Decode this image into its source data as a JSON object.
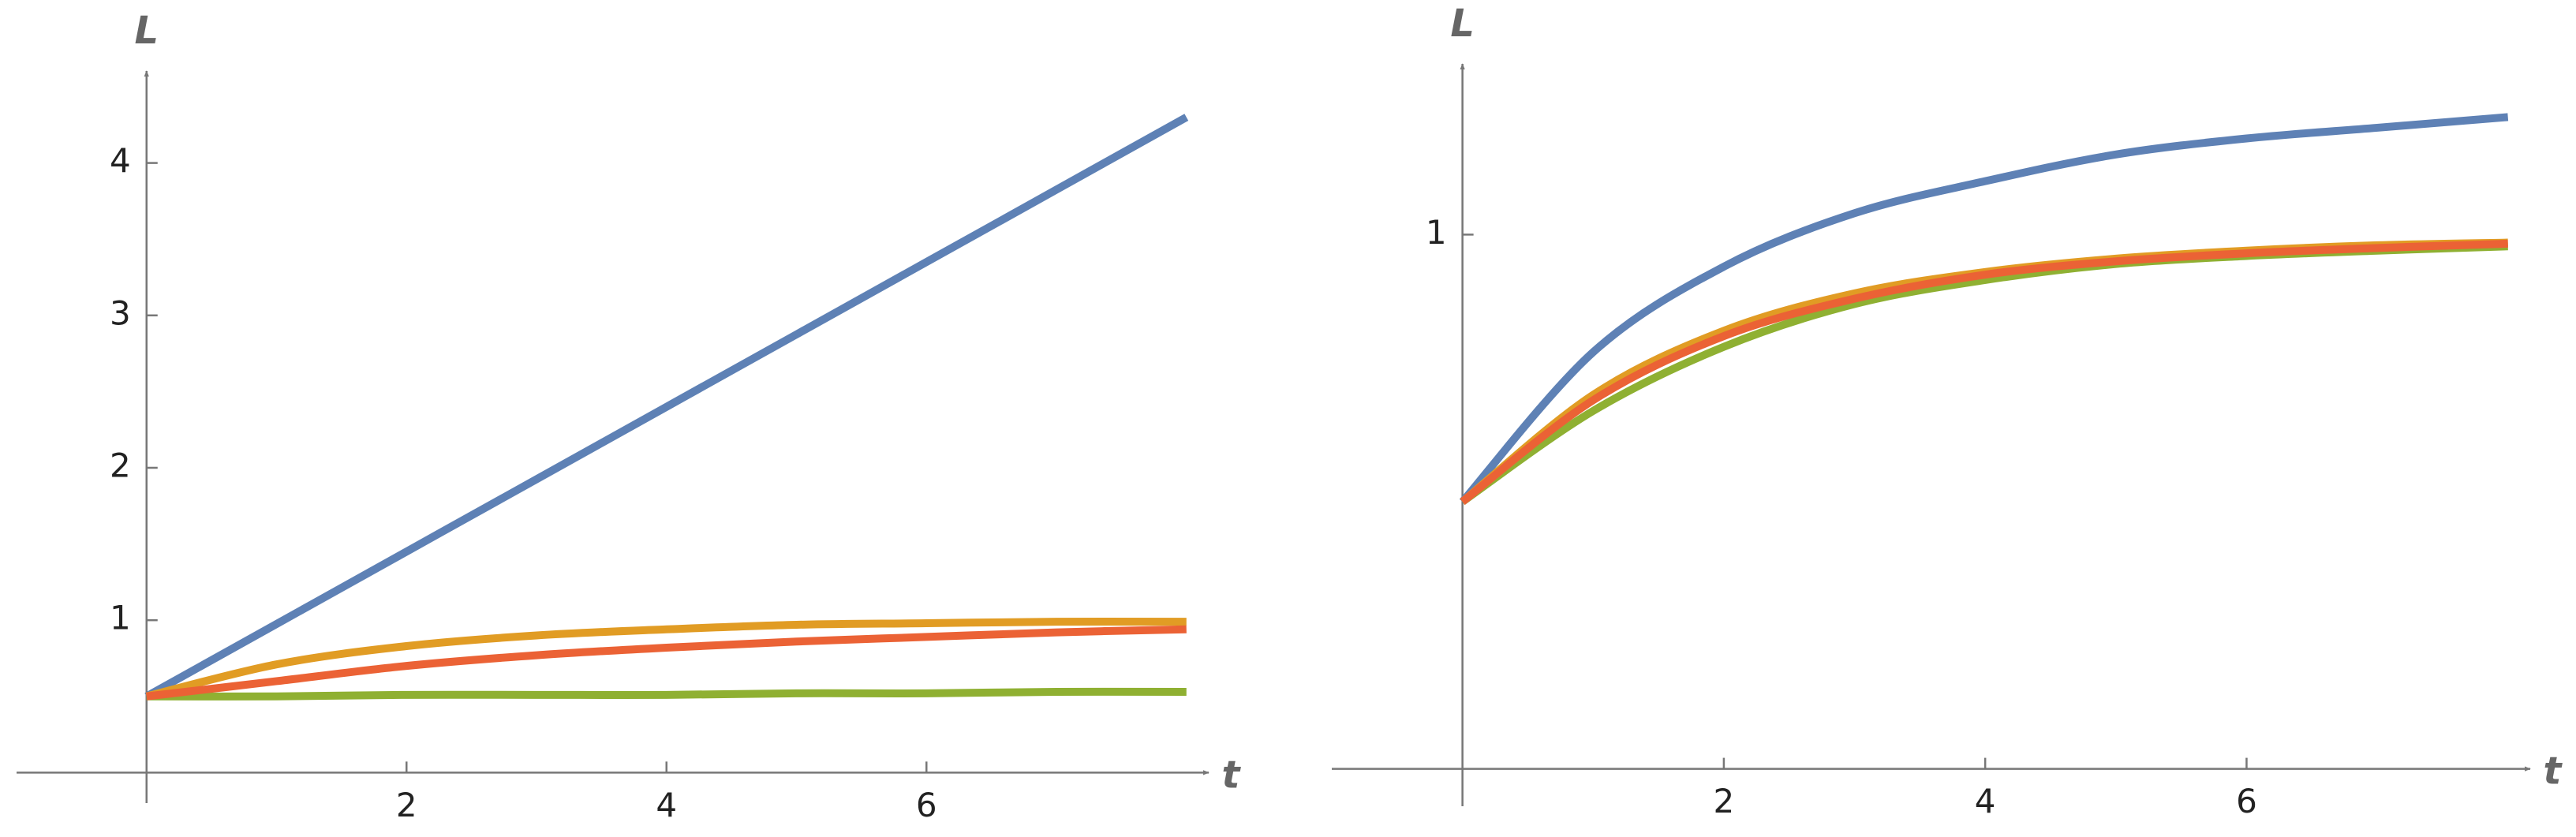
{
  "chart_data": [
    {
      "type": "line",
      "xlabel": "t",
      "ylabel": "L",
      "x": [
        0,
        1,
        2,
        3,
        4,
        5,
        6,
        7,
        8
      ],
      "xlim": [
        -1,
        8.05
      ],
      "ylim": [
        -0.2,
        4.5
      ],
      "xticks": [
        2,
        4,
        6
      ],
      "yticks": [
        1,
        2,
        3,
        4
      ],
      "series": [
        {
          "color": "#5e81b5",
          "values": [
            0.5,
            0.975,
            1.45,
            1.925,
            2.4,
            2.875,
            3.35,
            3.825,
            4.3
          ]
        },
        {
          "color": "#e19c24",
          "values": [
            0.5,
            0.71,
            0.83,
            0.9,
            0.94,
            0.97,
            0.98,
            0.99,
            0.99
          ]
        },
        {
          "color": "#8fb032",
          "values": [
            0.5,
            0.5,
            0.51,
            0.51,
            0.51,
            0.52,
            0.52,
            0.53,
            0.53
          ]
        },
        {
          "color": "#eb6235",
          "values": [
            0.5,
            0.6,
            0.7,
            0.77,
            0.82,
            0.86,
            0.89,
            0.92,
            0.94
          ]
        }
      ]
    },
    {
      "type": "line",
      "xlabel": "t",
      "ylabel": "L",
      "x": [
        0,
        1,
        2,
        3,
        4,
        5,
        6,
        7,
        8
      ],
      "xlim": [
        -1,
        8.05
      ],
      "ylim": [
        -0.07,
        1.29
      ],
      "xticks": [
        2,
        4,
        6
      ],
      "yticks": [
        1
      ],
      "series": [
        {
          "color": "#5e81b5",
          "values": [
            0.5,
            0.78,
            0.94,
            1.04,
            1.1,
            1.15,
            1.18,
            1.2,
            1.22
          ]
        },
        {
          "color": "#e19c24",
          "values": [
            0.5,
            0.7,
            0.82,
            0.89,
            0.93,
            0.955,
            0.97,
            0.98,
            0.985
          ]
        },
        {
          "color": "#8fb032",
          "values": [
            0.5,
            0.67,
            0.79,
            0.87,
            0.915,
            0.945,
            0.96,
            0.97,
            0.978
          ]
        },
        {
          "color": "#eb6235",
          "values": [
            0.5,
            0.69,
            0.81,
            0.88,
            0.925,
            0.95,
            0.965,
            0.975,
            0.983
          ]
        }
      ]
    }
  ]
}
